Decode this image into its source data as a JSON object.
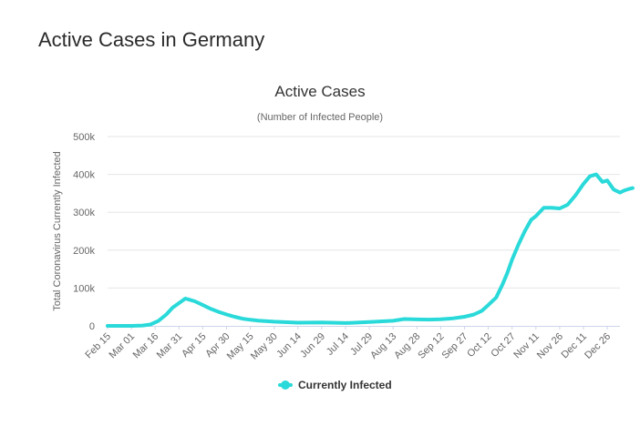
{
  "page": {
    "heading": "Active Cases in Germany"
  },
  "colors": {
    "series": "#2ad9d9",
    "grid": "#e6e6e6",
    "axis": "#ccd6eb",
    "tick_text": "#666666"
  },
  "chart_data": {
    "type": "line",
    "title": "Active Cases",
    "subtitle": "(Number of Infected People)",
    "xlabel": "",
    "ylabel": "Total Coronavirus Currently Infected",
    "x_tick_labels": [
      "Feb 15",
      "Mar 01",
      "Mar 16",
      "Mar 31",
      "Apr 15",
      "Apr 30",
      "May 15",
      "May 30",
      "Jun 14",
      "Jun 29",
      "Jul 14",
      "Jul 29",
      "Aug 13",
      "Aug 28",
      "Sep 12",
      "Sep 27",
      "Oct 12",
      "Oct 27",
      "Nov 11",
      "Nov 26",
      "Dec 11",
      "Dec 26"
    ],
    "y_tick_labels": [
      "0",
      "100k",
      "200k",
      "300k",
      "400k",
      "500k"
    ],
    "ylim": [
      0,
      500000
    ],
    "grid": true,
    "legend_position": "bottom-center",
    "series": [
      {
        "name": "Currently Infected",
        "x": [
          "2020-02-15",
          "2020-03-01",
          "2020-03-08",
          "2020-03-13",
          "2020-03-18",
          "2020-03-23",
          "2020-03-27",
          "2020-03-31",
          "2020-04-04",
          "2020-04-06",
          "2020-04-10",
          "2020-04-15",
          "2020-04-20",
          "2020-04-25",
          "2020-04-30",
          "2020-05-05",
          "2020-05-10",
          "2020-05-15",
          "2020-05-20",
          "2020-05-30",
          "2020-06-14",
          "2020-06-29",
          "2020-07-14",
          "2020-07-29",
          "2020-08-13",
          "2020-08-20",
          "2020-08-28",
          "2020-09-05",
          "2020-09-12",
          "2020-09-20",
          "2020-09-27",
          "2020-10-03",
          "2020-10-08",
          "2020-10-12",
          "2020-10-17",
          "2020-10-21",
          "2020-10-24",
          "2020-10-27",
          "2020-10-31",
          "2020-11-04",
          "2020-11-08",
          "2020-11-11",
          "2020-11-16",
          "2020-11-21",
          "2020-11-26",
          "2020-12-01",
          "2020-12-06",
          "2020-12-11",
          "2020-12-15",
          "2020-12-19",
          "2020-12-23",
          "2020-12-26",
          "2020-12-30",
          "2021-01-03",
          "2021-01-06",
          "2021-01-09",
          "2021-01-11"
        ],
        "y": [
          16,
          120,
          900,
          3500,
          13000,
          30000,
          48000,
          60000,
          72000,
          70000,
          65000,
          55000,
          45000,
          37000,
          30000,
          24000,
          19000,
          16000,
          14000,
          11000,
          8500,
          9000,
          7500,
          10000,
          13500,
          18000,
          17000,
          16500,
          17500,
          20000,
          24000,
          30000,
          40000,
          55000,
          75000,
          110000,
          140000,
          175000,
          215000,
          250000,
          280000,
          290000,
          312000,
          312000,
          310000,
          320000,
          345000,
          375000,
          395000,
          400000,
          380000,
          384000,
          360000,
          352000,
          358000,
          362000,
          364000
        ]
      }
    ]
  }
}
